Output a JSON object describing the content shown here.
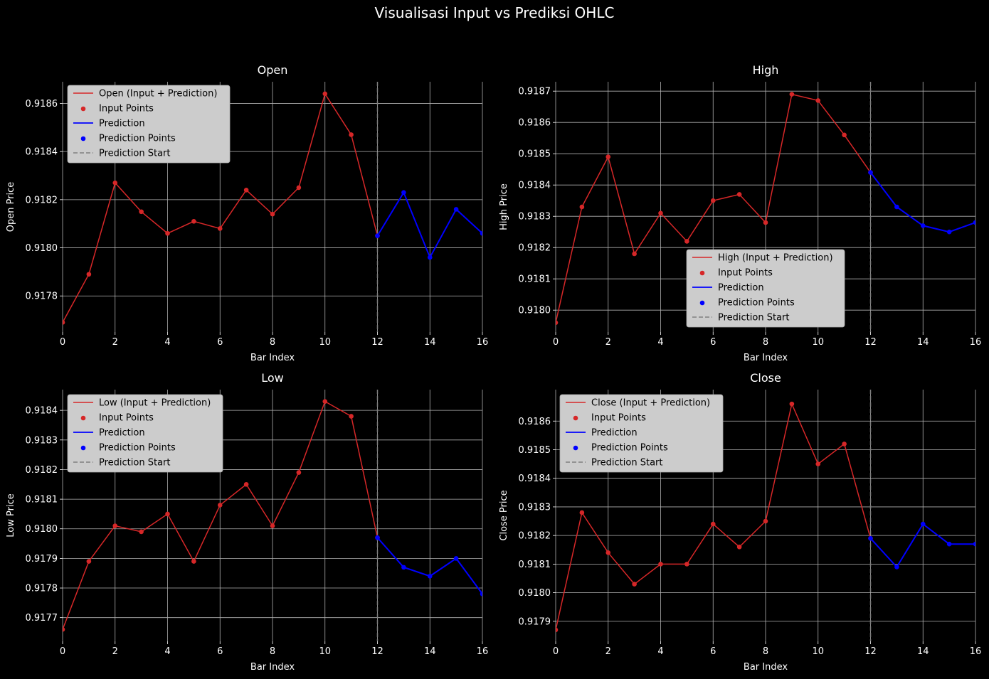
{
  "figure": {
    "title": "Visualisasi Input vs Prediksi OHLC",
    "colors": {
      "background": "#000000",
      "text": "#ffffff",
      "grid": "#b0b0b0",
      "input": "#d62728",
      "prediction": "#0000ff",
      "vline": "#808080",
      "legend_bg": "#cccccc",
      "legend_text": "#000000"
    }
  },
  "chart_data": [
    {
      "type": "line",
      "title": "Open",
      "xlabel": "Bar Index",
      "ylabel": "Open Price",
      "xlim": [
        0,
        16
      ],
      "ylim": [
        0.91765,
        0.91869
      ],
      "xticks": [
        "0",
        "2",
        "4",
        "6",
        "8",
        "10",
        "12",
        "14",
        "16"
      ],
      "yticks": [
        "0.9178",
        "0.9180",
        "0.9182",
        "0.9184",
        "0.9186"
      ],
      "grid": true,
      "legend_position": "upper-left",
      "prediction_start": 12,
      "series": [
        {
          "name": "Open (Input + Prediction)",
          "x": [
            0,
            1,
            2,
            3,
            4,
            5,
            6,
            7,
            8,
            9,
            10,
            11,
            12
          ],
          "values": [
            0.91769,
            0.91789,
            0.91827,
            0.91815,
            0.91806,
            0.91811,
            0.91808,
            0.91824,
            0.91814,
            0.91825,
            0.91864,
            0.91847,
            0.91805
          ]
        },
        {
          "name": "Prediction",
          "x": [
            12,
            13,
            14,
            15,
            16
          ],
          "values": [
            0.91805,
            0.91823,
            0.91796,
            0.91816,
            0.91806
          ]
        }
      ],
      "legend": [
        "Open (Input + Prediction)",
        "Input Points",
        "Prediction",
        "Prediction Points",
        "Prediction Start"
      ]
    },
    {
      "type": "line",
      "title": "High",
      "xlabel": "Bar Index",
      "ylabel": "High Price",
      "xlim": [
        0,
        16
      ],
      "ylim": [
        0.91793,
        0.91873
      ],
      "xticks": [
        "0",
        "2",
        "4",
        "6",
        "8",
        "10",
        "12",
        "14",
        "16"
      ],
      "yticks": [
        "0.9180",
        "0.9181",
        "0.9182",
        "0.9183",
        "0.9184",
        "0.9185",
        "0.9186",
        "0.9187"
      ],
      "grid": true,
      "legend_position": "lower-center",
      "prediction_start": 12,
      "series": [
        {
          "name": "High (Input + Prediction)",
          "x": [
            0,
            1,
            2,
            3,
            4,
            5,
            6,
            7,
            8,
            9,
            10,
            11,
            12
          ],
          "values": [
            0.91796,
            0.91833,
            0.91849,
            0.91818,
            0.91831,
            0.91822,
            0.91835,
            0.91837,
            0.91828,
            0.91869,
            0.91867,
            0.91856,
            0.91844
          ]
        },
        {
          "name": "Prediction",
          "x": [
            12,
            13,
            14,
            15,
            16
          ],
          "values": [
            0.91844,
            0.91833,
            0.91827,
            0.91825,
            0.91828
          ]
        }
      ],
      "legend": [
        "High (Input + Prediction)",
        "Input Points",
        "Prediction",
        "Prediction Points",
        "Prediction Start"
      ]
    },
    {
      "type": "line",
      "title": "Low",
      "xlabel": "Bar Index",
      "ylabel": "Low Price",
      "xlim": [
        0,
        16
      ],
      "ylim": [
        0.91762,
        0.91847
      ],
      "xticks": [
        "0",
        "2",
        "4",
        "6",
        "8",
        "10",
        "12",
        "14",
        "16"
      ],
      "yticks": [
        "0.9177",
        "0.9178",
        "0.9179",
        "0.9180",
        "0.9181",
        "0.9182",
        "0.9183",
        "0.9184"
      ],
      "grid": true,
      "legend_position": "upper-left",
      "prediction_start": 12,
      "series": [
        {
          "name": "Low (Input + Prediction)",
          "x": [
            0,
            1,
            2,
            3,
            4,
            5,
            6,
            7,
            8,
            9,
            10,
            11,
            12
          ],
          "values": [
            0.91766,
            0.91789,
            0.91801,
            0.91799,
            0.91805,
            0.91789,
            0.91808,
            0.91815,
            0.91801,
            0.91819,
            0.91843,
            0.91838,
            0.91797
          ]
        },
        {
          "name": "Prediction",
          "x": [
            12,
            13,
            14,
            15,
            16
          ],
          "values": [
            0.91797,
            0.91787,
            0.91784,
            0.9179,
            0.91778
          ]
        }
      ],
      "legend": [
        "Low (Input + Prediction)",
        "Input Points",
        "Prediction",
        "Prediction Points",
        "Prediction Start"
      ]
    },
    {
      "type": "line",
      "title": "Close",
      "xlabel": "Bar Index",
      "ylabel": "Close Price",
      "xlim": [
        0,
        16
      ],
      "ylim": [
        0.91783,
        0.91871
      ],
      "xticks": [
        "0",
        "2",
        "4",
        "6",
        "8",
        "10",
        "12",
        "14",
        "16"
      ],
      "yticks": [
        "0.9179",
        "0.9180",
        "0.9181",
        "0.9182",
        "0.9183",
        "0.9184",
        "0.9185",
        "0.9186"
      ],
      "grid": true,
      "legend_position": "upper-left",
      "prediction_start": 12,
      "series": [
        {
          "name": "Close (Input + Prediction)",
          "x": [
            0,
            1,
            2,
            3,
            4,
            5,
            6,
            7,
            8,
            9,
            10,
            11,
            12
          ],
          "values": [
            0.91787,
            0.91828,
            0.91814,
            0.91803,
            0.9181,
            0.9181,
            0.91824,
            0.91816,
            0.91825,
            0.91866,
            0.91845,
            0.91852,
            0.91819
          ]
        },
        {
          "name": "Prediction",
          "x": [
            12,
            13,
            14,
            15,
            16
          ],
          "values": [
            0.91819,
            0.91809,
            0.91824,
            0.91817,
            0.91817
          ]
        }
      ],
      "legend": [
        "Close (Input + Prediction)",
        "Input Points",
        "Prediction",
        "Prediction Points",
        "Prediction Start"
      ]
    }
  ]
}
